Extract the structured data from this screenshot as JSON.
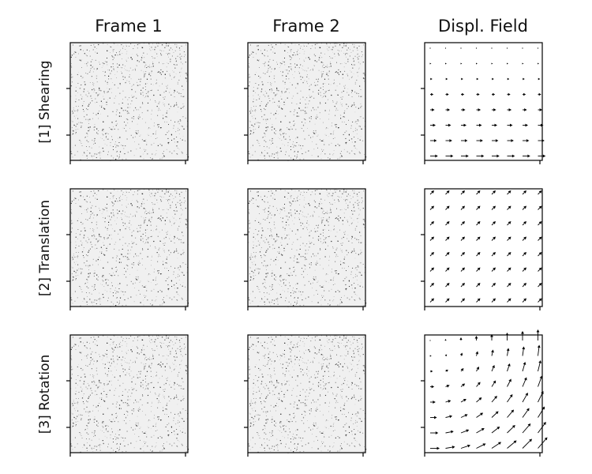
{
  "figure": {
    "column_titles": [
      "Frame 1",
      "Frame 2",
      "Displ. Field"
    ],
    "rows": [
      {
        "label": "[1] Shearing",
        "field": "shearing"
      },
      {
        "label": "[2] Translation",
        "field": "translation"
      },
      {
        "label": "[3] Rotation",
        "field": "rotation"
      }
    ],
    "colors": {
      "frame_background": "#f0f0f0",
      "particle": "#1a1a1a",
      "arrow": "#000000",
      "axis": "#000000"
    }
  }
}
